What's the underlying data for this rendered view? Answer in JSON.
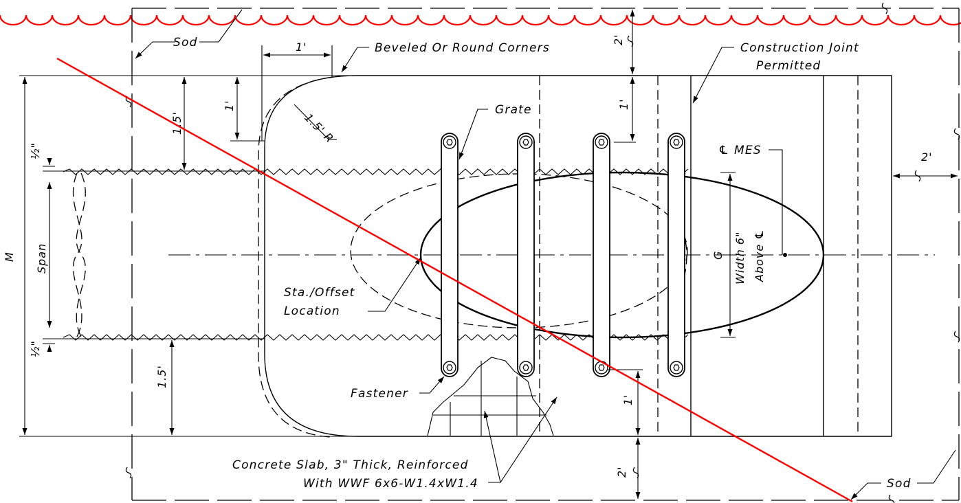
{
  "labels": {
    "sod_top": "Sod",
    "sod_bottom": "Sod",
    "beveled_corners": "Beveled Or Round Corners",
    "construction_joint_line1": "Construction Joint",
    "construction_joint_line2": "Permitted",
    "grate": "Grate",
    "cl_mes": "℄ MES",
    "sta_offset_line1": "Sta./Offset",
    "sta_offset_line2": "Location",
    "fastener": "Fastener",
    "slab_line1": "Concrete Slab, 3\" Thick, Reinforced",
    "slab_line2": "With WWF 6x6-W1.4xW1.4",
    "g_label": "G",
    "width_line1": "Width 6\"",
    "width_line2": "Above ℄"
  },
  "dimensions": {
    "corner_width": "1'",
    "corner_height": "1'",
    "radius": "1.5' R",
    "top_offset": "1.5'",
    "bottom_offset": "1.5'",
    "top_clear": "2'",
    "grate_top_gap": "1'",
    "grate_bottom_gap": "1'",
    "bottom_clear": "2'",
    "right_clear": "2'",
    "half_inch_top": "½\"",
    "half_inch_bottom": "½\"",
    "span": "Span",
    "m": "M"
  },
  "colors": {
    "linework": "#000000",
    "markup_red": "#ff0000"
  }
}
